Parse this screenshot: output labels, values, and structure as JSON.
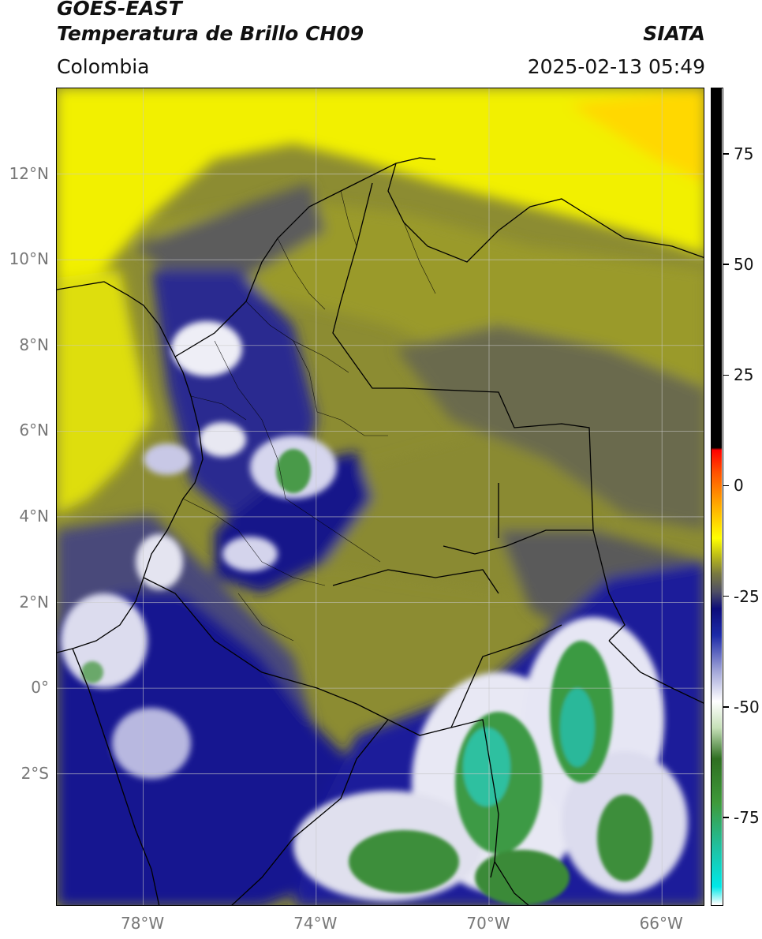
{
  "header": {
    "satellite": "GOES-EAST",
    "product": "Temperatura de Brillo CH09",
    "organization": "SIATA",
    "region": "Colombia",
    "timestamp": "2025-02-13 05:49"
  },
  "map": {
    "extent": {
      "lon": [
        -80,
        -65
      ],
      "lat": [
        -5.1,
        14
      ]
    },
    "lat_ticks": [
      {
        "value": 12,
        "label": "12°N"
      },
      {
        "value": 10,
        "label": "10°N"
      },
      {
        "value": 8,
        "label": "8°N"
      },
      {
        "value": 6,
        "label": "6°N"
      },
      {
        "value": 4,
        "label": "4°N"
      },
      {
        "value": 2,
        "label": "2°N"
      },
      {
        "value": 0,
        "label": "0°"
      },
      {
        "value": -2,
        "label": "2°S"
      }
    ],
    "lon_ticks": [
      {
        "value": -78,
        "label": "78°W"
      },
      {
        "value": -74,
        "label": "74°W"
      },
      {
        "value": -70,
        "label": "70°W"
      },
      {
        "value": -66,
        "label": "66°W"
      }
    ]
  },
  "colorbar": {
    "range": [
      -95,
      90
    ],
    "ticks": [
      {
        "value": 75,
        "label": "75"
      },
      {
        "value": 50,
        "label": "50"
      },
      {
        "value": 25,
        "label": "25"
      },
      {
        "value": 0,
        "label": "0"
      },
      {
        "value": -25,
        "label": "-25"
      },
      {
        "value": -50,
        "label": "-50"
      },
      {
        "value": -75,
        "label": "-75"
      }
    ],
    "stops": [
      {
        "value": -95,
        "color": "#ffffff"
      },
      {
        "value": -91,
        "color": "#00e8e8"
      },
      {
        "value": -82,
        "color": "#20c0a0"
      },
      {
        "value": -72,
        "color": "#3e9a3a"
      },
      {
        "value": -62,
        "color": "#2f6f22"
      },
      {
        "value": -55,
        "color": "#c6e0b8"
      },
      {
        "value": -49,
        "color": "#ffffff"
      },
      {
        "value": -42,
        "color": "#a0a4d8"
      },
      {
        "value": -34,
        "color": "#1c2aa8"
      },
      {
        "value": -28,
        "color": "#0c0c7a"
      },
      {
        "value": -24,
        "color": "#505064"
      },
      {
        "value": -20,
        "color": "#7a7a40"
      },
      {
        "value": -16,
        "color": "#bcbc18"
      },
      {
        "value": -12,
        "color": "#ffff00"
      },
      {
        "value": -5,
        "color": "#ffb000"
      },
      {
        "value": 3,
        "color": "#ff5000"
      },
      {
        "value": 8,
        "color": "#ff0000"
      },
      {
        "value": 8.5,
        "color": "#000000"
      },
      {
        "value": 90,
        "color": "#000000"
      }
    ]
  }
}
